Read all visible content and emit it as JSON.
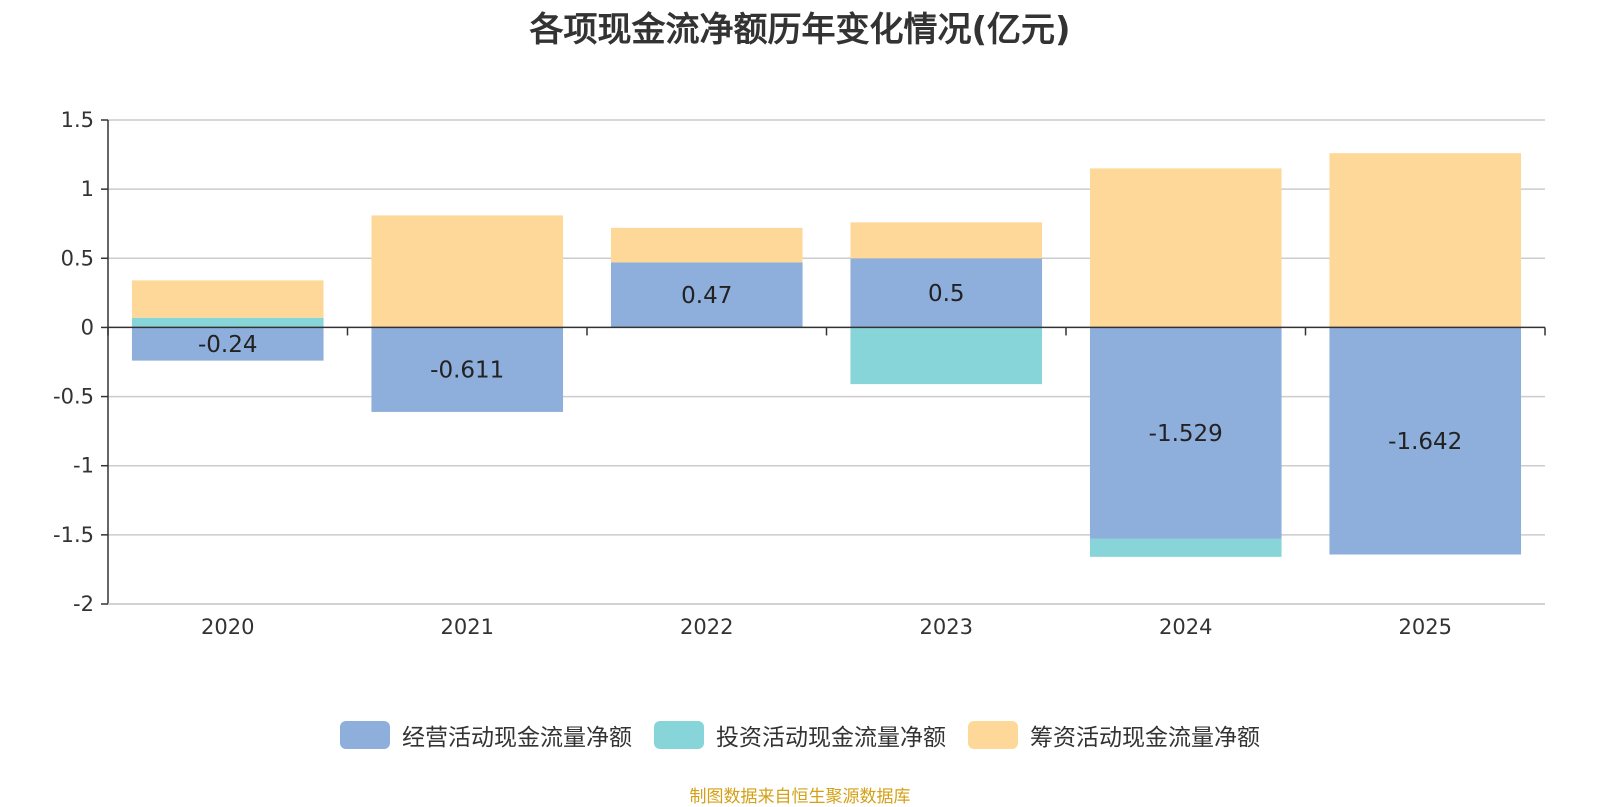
{
  "chart_data": {
    "type": "bar",
    "stacked": true,
    "title": "各项现金流净额历年变化情况(亿元)",
    "categories": [
      "2020",
      "2021",
      "2022",
      "2023",
      "2024",
      "2025"
    ],
    "series": [
      {
        "name": "经营活动现金流量净额",
        "color": "#8eaedb",
        "values": [
          -0.24,
          -0.611,
          0.47,
          0.5,
          -1.529,
          -1.642
        ]
      },
      {
        "name": "投资活动现金流量净额",
        "color": "#87d5d8",
        "values": [
          0.07,
          0,
          0,
          -0.41,
          -0.13,
          0
        ]
      },
      {
        "name": "筹资活动现金流量净额",
        "color": "#fed898",
        "values": [
          0.27,
          0.81,
          0.25,
          0.26,
          1.15,
          1.26
        ]
      }
    ],
    "data_labels": [
      "-0.24",
      "-0.611",
      "0.47",
      "0.5",
      "-1.529",
      "-1.642"
    ],
    "ylim": [
      -2,
      1.5
    ],
    "yticks": [
      1.5,
      1,
      0.5,
      0,
      -0.5,
      -1,
      -1.5,
      -2
    ],
    "ytick_labels": [
      "1.5",
      "1",
      "0.5",
      "0",
      "-0.5",
      "-1",
      "-1.5",
      "-2"
    ],
    "grid": true,
    "legend_position": "bottom"
  },
  "source_note": "制图数据来自恒生聚源数据库"
}
